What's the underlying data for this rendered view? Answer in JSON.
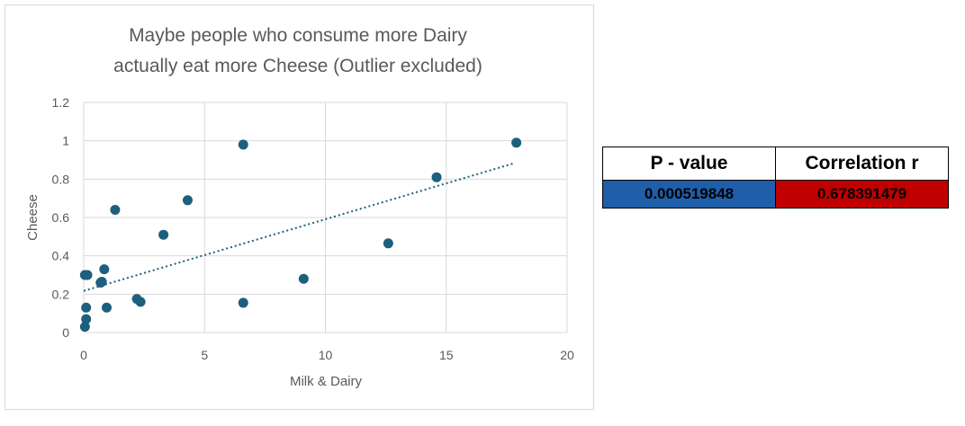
{
  "chart_data": {
    "type": "scatter",
    "title_lines": [
      "Maybe people who consume more Dairy",
      "actually eat more Cheese (Outlier excluded)"
    ],
    "xlabel": "Milk & Dairy",
    "ylabel": "Cheese",
    "xlim": [
      0,
      20
    ],
    "ylim": [
      0,
      1.2
    ],
    "x_ticks": [
      0,
      5,
      10,
      15,
      20
    ],
    "y_ticks": [
      0,
      0.2,
      0.4,
      0.6,
      0.8,
      1,
      1.2
    ],
    "x_tick_labels": [
      "0",
      "5",
      "10",
      "15",
      "20"
    ],
    "y_tick_labels": [
      "0",
      "0.2",
      "0.4",
      "0.6",
      "0.8",
      "1",
      "1.2"
    ],
    "grid": true,
    "marker_color": "#1d5f7e",
    "trendline": {
      "style": "dotted",
      "color": "#1d5f7e",
      "x_start": 0,
      "x_end": 17.8,
      "slope": 0.0374,
      "intercept": 0.217
    },
    "points": [
      {
        "x": 0.05,
        "y": 0.03
      },
      {
        "x": 0.1,
        "y": 0.07
      },
      {
        "x": 0.1,
        "y": 0.13
      },
      {
        "x": 0.05,
        "y": 0.3
      },
      {
        "x": 0.15,
        "y": 0.3
      },
      {
        "x": 0.7,
        "y": 0.26
      },
      {
        "x": 0.75,
        "y": 0.265
      },
      {
        "x": 0.85,
        "y": 0.33
      },
      {
        "x": 0.95,
        "y": 0.13
      },
      {
        "x": 1.3,
        "y": 0.64
      },
      {
        "x": 2.2,
        "y": 0.175
      },
      {
        "x": 2.35,
        "y": 0.16
      },
      {
        "x": 3.3,
        "y": 0.51
      },
      {
        "x": 4.3,
        "y": 0.69
      },
      {
        "x": 6.6,
        "y": 0.98
      },
      {
        "x": 6.6,
        "y": 0.155
      },
      {
        "x": 9.1,
        "y": 0.28
      },
      {
        "x": 12.6,
        "y": 0.465
      },
      {
        "x": 14.6,
        "y": 0.81
      },
      {
        "x": 17.9,
        "y": 0.99
      }
    ]
  },
  "stats_table": {
    "headers": [
      "P - value",
      "Correlation r"
    ],
    "values": [
      "0.000519848",
      "0.678391479"
    ],
    "cell_colors": [
      "#1f5ea8",
      "#c00000"
    ],
    "text_color": "#000000"
  }
}
